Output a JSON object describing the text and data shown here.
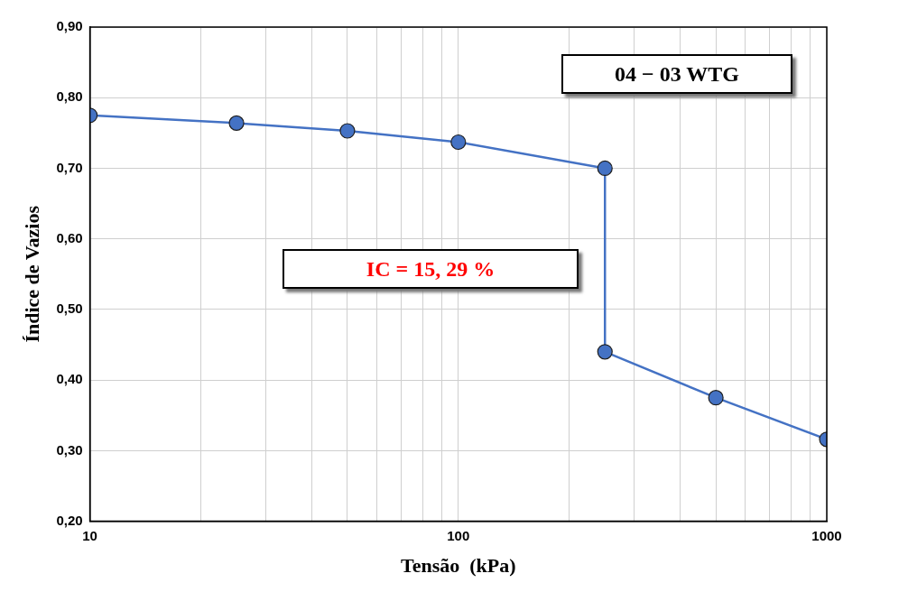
{
  "chart_data": {
    "type": "line",
    "xlabel": "Tensão  (kPa)",
    "ylabel": "Índice de Vazios",
    "annotations": [
      "04 − 03 WTG",
      "IC = 15, 29 %"
    ],
    "series": [
      {
        "color": "#4472c4",
        "x": [
          10,
          25,
          50,
          100,
          250,
          250,
          500,
          1000
        ],
        "values": [
          0.775,
          0.764,
          0.753,
          0.737,
          0.7,
          0.44,
          0.375,
          0.316
        ]
      }
    ],
    "log": "x",
    "xlim": [
      10,
      1000
    ],
    "xticks": [
      10,
      {
        "value": 20,
        "label": null
      },
      {
        "value": 30,
        "label": null
      },
      {
        "value": 40,
        "label": null
      },
      {
        "value": 50,
        "label": null
      },
      {
        "value": 60,
        "label": null
      },
      {
        "value": 70,
        "label": null
      },
      {
        "value": 80,
        "label": null
      },
      {
        "value": 90,
        "label": null
      },
      100,
      {
        "value": 200,
        "label": null
      },
      {
        "value": 300,
        "label": null
      },
      {
        "value": 400,
        "label": null
      },
      {
        "value": 500,
        "label": null
      },
      {
        "value": 600,
        "label": null
      },
      {
        "value": 700,
        "label": null
      },
      {
        "value": 800,
        "label": null
      },
      {
        "value": 900,
        "label": null
      },
      1000
    ],
    "ylim": [
      0.2,
      0.9
    ],
    "yticks": [
      {
        "value": 0.2,
        "label": "0,20"
      },
      {
        "value": 0.3,
        "label": "0,30"
      },
      {
        "value": 0.4,
        "label": "0,40"
      },
      {
        "value": 0.5,
        "label": "0,50"
      },
      {
        "value": 0.6,
        "label": "0,60"
      },
      {
        "value": 0.7,
        "label": "0,70"
      },
      {
        "value": 0.8,
        "label": "0,80"
      },
      {
        "value": 0.9,
        "label": "0,90"
      }
    ],
    "grid": true,
    "legend": false,
    "marker": "circle",
    "line_style": "solid"
  }
}
